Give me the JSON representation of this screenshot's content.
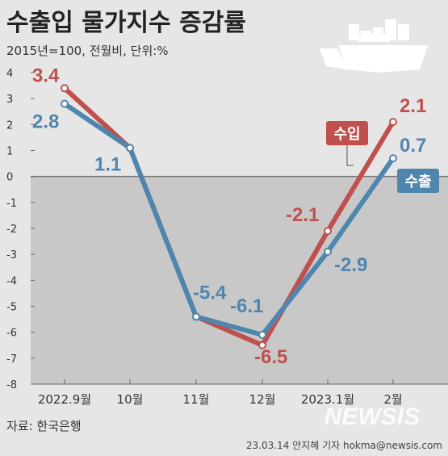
{
  "header": {
    "title": "수출입 물가지수 증감률",
    "subtitle": "2015년=100, 전월비, 단위:%"
  },
  "footer": {
    "source": "자료: 한국은행",
    "credit": "23.03.14 안지혜 기자 hokma@newsis.com",
    "watermark": "NEWSIS"
  },
  "chart_data": {
    "type": "line",
    "categories": [
      "2022.9월",
      "10월",
      "11월",
      "12월",
      "2023.1월",
      "2월"
    ],
    "ylim": [
      -8,
      4
    ],
    "yticks": [
      "4",
      "3",
      "2",
      "1",
      "0",
      "-1",
      "-2",
      "-3",
      "-4",
      "-5",
      "-6",
      "-7",
      "-8"
    ],
    "series": [
      {
        "name": "수입",
        "color": "#c0504d",
        "values": [
          3.4,
          1.1,
          -5.4,
          -6.5,
          -2.1,
          2.1
        ],
        "labels": [
          "3.4",
          "",
          "",
          "-6.5",
          "-2.1",
          "2.1"
        ]
      },
      {
        "name": "수출",
        "color": "#4f86ad",
        "values": [
          2.8,
          1.1,
          -5.4,
          -6.1,
          -2.9,
          0.7
        ],
        "labels": [
          "2.8",
          "1.1",
          "-5.4",
          "-6.1",
          "-2.9",
          "0.7"
        ]
      }
    ],
    "negative_region_color": "#c8c8c8",
    "grid": false,
    "legend": "right, as tags next to line ends"
  },
  "colors": {
    "background": "#e6e6e6",
    "negative_band": "#c8c8c8",
    "text": "#333333"
  },
  "icon": "cargo-ship-icon"
}
